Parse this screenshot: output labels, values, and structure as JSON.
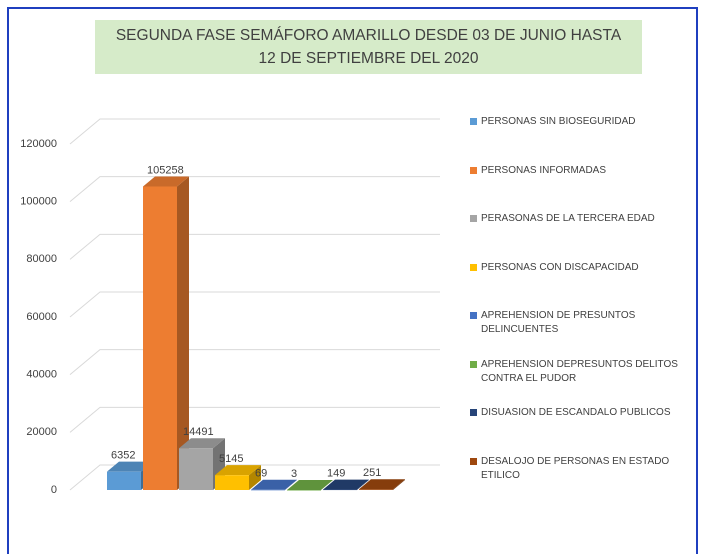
{
  "chart_data": {
    "type": "bar3d",
    "title": [
      "SEGUNDA FASE SEMÁFORO AMARILLO DESDE 03 DE JUNIO HASTA",
      "12 DE SEPTIEMBRE DEL 2020"
    ],
    "categories": [
      "PERSONAS SIN BIOSEGURIDAD",
      "PERSONAS INFORMADAS",
      "PERASONAS DE LA TERCERA EDAD",
      "PERSONAS CON DISCAPACIDAD",
      "APREHENSION DE PRESUNTOS DELINCUENTES",
      "APREHENSION DEPRESUNTOS DELITOS CONTRA EL PUDOR",
      "DISUASION DE ESCANDALO PUBLICOS",
      "DESALOJO DE PERSONAS EN ESTADO ETILICO"
    ],
    "values": [
      6352,
      105258,
      14491,
      5145,
      69,
      3,
      149,
      251
    ],
    "colors": [
      "#5b9bd5",
      "#ed7d31",
      "#a5a5a5",
      "#ffc000",
      "#4472c4",
      "#70ad47",
      "#264478",
      "#9e480e"
    ],
    "ylim": [
      0,
      120000
    ],
    "yticks": [
      0,
      20000,
      40000,
      60000,
      80000,
      100000,
      120000
    ],
    "grid": true,
    "legend": "right"
  }
}
